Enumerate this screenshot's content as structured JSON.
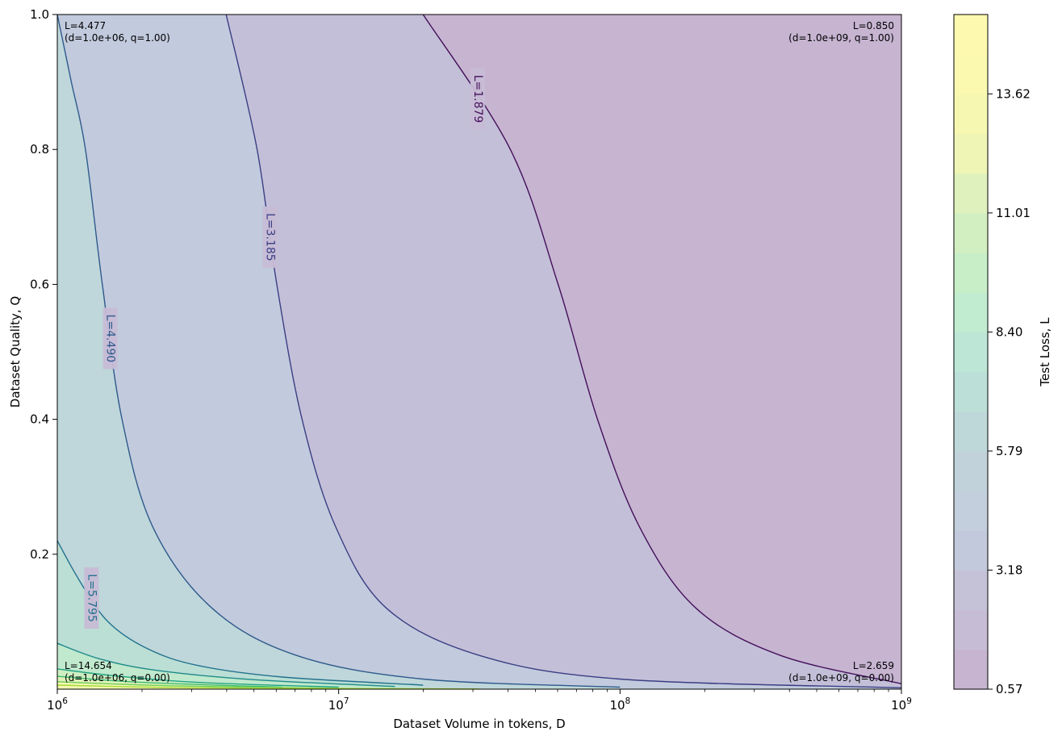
{
  "chart_data": {
    "type": "contour",
    "xlabel": "Dataset Volume in tokens, D",
    "ylabel": "Dataset Quality, Q",
    "x_scale": "log",
    "xlim": [
      1000000,
      1000000000
    ],
    "ylim": [
      0,
      1
    ],
    "x_ticks": [
      {
        "value": 1000000,
        "base": "10",
        "exp": "6"
      },
      {
        "value": 10000000,
        "base": "10",
        "exp": "7"
      },
      {
        "value": 100000000,
        "base": "10",
        "exp": "8"
      },
      {
        "value": 1000000000,
        "base": "10",
        "exp": "9"
      }
    ],
    "y_ticks": [
      {
        "value": 0.2,
        "label": "0.2"
      },
      {
        "value": 0.4,
        "label": "0.4"
      },
      {
        "value": 0.6,
        "label": "0.6"
      },
      {
        "value": 0.8,
        "label": "0.8"
      },
      {
        "value": 1.0,
        "label": "1.0"
      }
    ],
    "fill_levels": [
      0.57,
      1.44,
      2.31,
      3.18,
      4.05,
      4.92,
      5.79,
      6.66,
      7.53,
      8.4,
      9.27,
      10.14,
      11.01,
      11.88,
      12.75,
      13.62,
      14.49,
      15.36
    ],
    "contour_lines": [
      {
        "level": 1.879,
        "label": "L=1.879",
        "color": "#44105a",
        "points": [
          [
            7.3,
            1.0
          ],
          [
            7.61,
            0.8
          ],
          [
            7.78,
            0.6
          ],
          [
            7.92,
            0.4
          ],
          [
            8.07,
            0.24
          ],
          [
            8.27,
            0.12
          ],
          [
            8.57,
            0.05
          ],
          [
            9.0,
            0.008
          ]
        ]
      },
      {
        "level": 3.185,
        "label": "L=3.185",
        "color": "#3a3f84",
        "points": [
          [
            6.6,
            1.0
          ],
          [
            6.71,
            0.8
          ],
          [
            6.78,
            0.6
          ],
          [
            6.87,
            0.4
          ],
          [
            6.99,
            0.24
          ],
          [
            7.17,
            0.12
          ],
          [
            7.5,
            0.05
          ],
          [
            8.0,
            0.015
          ],
          [
            9.0,
            0.002
          ]
        ]
      },
      {
        "level": 4.49,
        "label": "L=4.490",
        "color": "#2e5a8c",
        "points": [
          [
            6.0,
            1.0
          ],
          [
            6.05,
            0.9
          ],
          [
            6.1,
            0.8
          ],
          [
            6.16,
            0.6
          ],
          [
            6.23,
            0.4
          ],
          [
            6.34,
            0.24
          ],
          [
            6.55,
            0.12
          ],
          [
            6.85,
            0.05
          ],
          [
            7.3,
            0.015
          ],
          [
            8.0,
            0.003
          ]
        ]
      },
      {
        "level": 5.795,
        "label": "L=5.795",
        "color": "#23718e",
        "points": [
          [
            6.0,
            0.22
          ],
          [
            6.08,
            0.16
          ],
          [
            6.18,
            0.1
          ],
          [
            6.32,
            0.06
          ],
          [
            6.5,
            0.035
          ],
          [
            6.8,
            0.018
          ],
          [
            7.3,
            0.006
          ]
        ]
      },
      {
        "level": 7.1,
        "label": "",
        "color": "#1e8a8a",
        "points": [
          [
            6.0,
            0.068
          ],
          [
            6.15,
            0.045
          ],
          [
            6.35,
            0.028
          ],
          [
            6.7,
            0.014
          ],
          [
            7.2,
            0.004
          ]
        ]
      },
      {
        "level": 8.4,
        "label": "",
        "color": "#22a384",
        "points": [
          [
            6.0,
            0.03
          ],
          [
            6.2,
            0.02
          ],
          [
            6.5,
            0.01
          ],
          [
            7.0,
            0.003
          ]
        ]
      },
      {
        "level": 9.7,
        "label": "",
        "color": "#3dbb73",
        "points": [
          [
            6.0,
            0.019
          ],
          [
            6.3,
            0.01
          ],
          [
            6.8,
            0.003
          ]
        ]
      },
      {
        "level": 11.0,
        "label": "",
        "color": "#6ccd59",
        "points": [
          [
            6.0,
            0.011
          ],
          [
            6.4,
            0.005
          ],
          [
            7.0,
            0.0012
          ]
        ]
      },
      {
        "level": 12.3,
        "label": "",
        "color": "#a6db3a",
        "points": [
          [
            6.0,
            0.006
          ],
          [
            6.5,
            0.002
          ],
          [
            7.5,
            0.0004
          ]
        ]
      }
    ],
    "annotations": [
      {
        "corner": "top-left",
        "lines": [
          "L=4.477",
          "(d=1.0e+06, q=1.00)"
        ]
      },
      {
        "corner": "top-right",
        "lines": [
          "L=0.850",
          "(d=1.0e+09, q=1.00)"
        ]
      },
      {
        "corner": "bottom-left",
        "lines": [
          "L=14.654",
          "(d=1.0e+06, q=0.00)"
        ]
      },
      {
        "corner": "bottom-right",
        "lines": [
          "L=2.659",
          "(d=1.0e+09, q=0.00)"
        ]
      }
    ],
    "colorbar": {
      "label": "Test Loss, L",
      "vmin": 0.57,
      "vmax": 15.36,
      "ticks": [
        {
          "value": 0.57,
          "label": "0.57"
        },
        {
          "value": 3.18,
          "label": "3.18"
        },
        {
          "value": 5.79,
          "label": "5.79"
        },
        {
          "value": 8.4,
          "label": "8.40"
        },
        {
          "value": 11.01,
          "label": "11.01"
        },
        {
          "value": 13.62,
          "label": "13.62"
        }
      ]
    },
    "colors": {
      "band_colors": [
        "#c6b4d1",
        "#c7bcd6",
        "#c5c2d8",
        "#c3c9dc",
        "#c4cfdd",
        "#c1d2db",
        "#bed8da",
        "#bcdfd8",
        "#bde6d7",
        "#c1eccf",
        "#c8eec8",
        "#d2efc2",
        "#dff2bd",
        "#eff5b4",
        "#f6f8b2",
        "#fbf9b0",
        "#fdfaaf"
      ],
      "frame": "#000000"
    }
  }
}
